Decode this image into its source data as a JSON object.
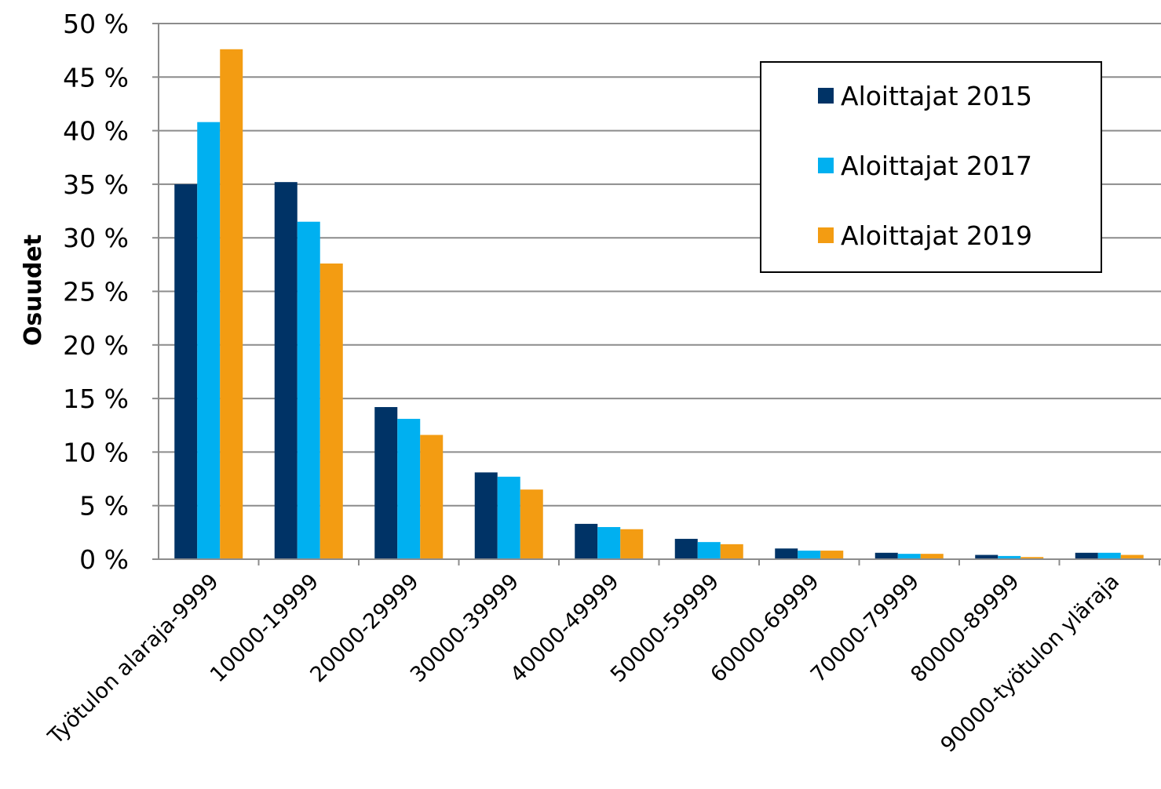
{
  "chart_data": {
    "type": "bar",
    "title": "",
    "xlabel": "",
    "ylabel": "Osuudet",
    "ylim": [
      0,
      50
    ],
    "y_ticks": [
      "0 %",
      "5 %",
      "10 %",
      "15 %",
      "20 %",
      "25 %",
      "30 %",
      "35 %",
      "40 %",
      "45 %",
      "50 %"
    ],
    "grid": true,
    "legend_position": "top-right",
    "categories": [
      "Työtulon alaraja-9999",
      "10000-19999",
      "20000-29999",
      "30000-39999",
      "40000-49999",
      "50000-59999",
      "60000-69999",
      "70000-79999",
      "80000-89999",
      "90000-työtulon yläraja"
    ],
    "series": [
      {
        "name": "Aloittajat 2015",
        "color": "#003366",
        "values": [
          35.0,
          35.2,
          14.2,
          8.1,
          3.3,
          1.9,
          1.0,
          0.6,
          0.4,
          0.6
        ]
      },
      {
        "name": "Aloittajat 2017",
        "color": "#00B0F0",
        "values": [
          40.8,
          31.5,
          13.1,
          7.7,
          3.0,
          1.6,
          0.8,
          0.5,
          0.3,
          0.6
        ]
      },
      {
        "name": "Aloittajat 2019",
        "color": "#F39C12",
        "values": [
          47.6,
          27.6,
          11.6,
          6.5,
          2.8,
          1.4,
          0.8,
          0.5,
          0.2,
          0.4
        ]
      }
    ]
  }
}
